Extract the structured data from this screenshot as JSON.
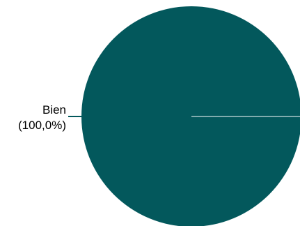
{
  "chart_data": {
    "type": "pie",
    "title": "",
    "slices": [
      {
        "label": "Bien",
        "value": 100.0,
        "percent_label": "(100,0%)",
        "color": "#03585c"
      }
    ],
    "separator_color": "#ffffff",
    "leader_line_color": "#03585c",
    "label_placement": "left"
  }
}
